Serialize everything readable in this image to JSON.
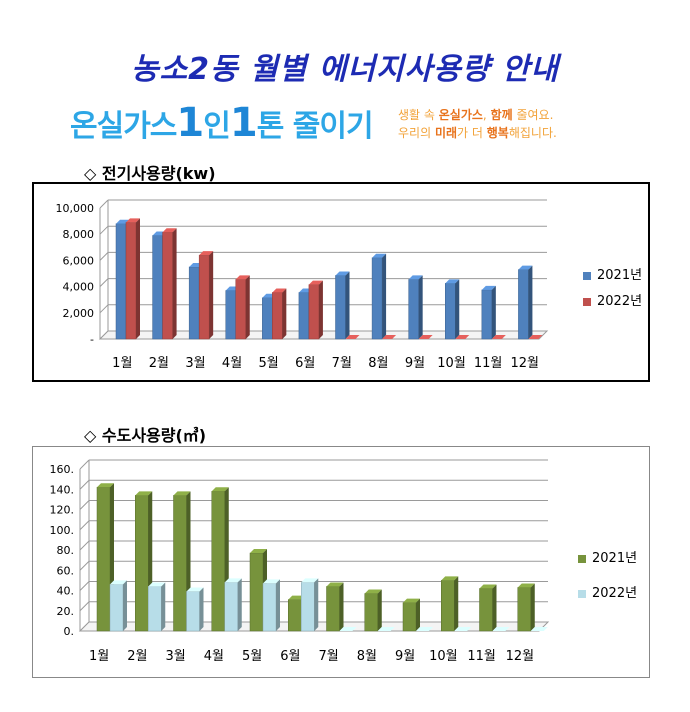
{
  "title": "농소2동 월별 에너지사용량 안내",
  "slogan": {
    "part1": "온실가스",
    "num1": "1",
    "part2": "인",
    "num2": "1",
    "part3": "톤 줄이기",
    "sub_line1_a": "생활 속 ",
    "sub_line1_b": "온실가스",
    "sub_line1_c": ", ",
    "sub_line1_d": "함께",
    "sub_line1_e": " 줄여요.",
    "sub_line2_a": "우리의 ",
    "sub_line2_b": "미래",
    "sub_line2_c": "가 더 ",
    "sub_line2_d": "행복",
    "sub_line2_e": "해집니다."
  },
  "chart_data": [
    {
      "type": "bar",
      "title": "◇ 전기사용량(kw)",
      "categories": [
        "1월",
        "2월",
        "3월",
        "4월",
        "5월",
        "6월",
        "7월",
        "8월",
        "9월",
        "10월",
        "11월",
        "12월"
      ],
      "series": [
        {
          "name": "2021년",
          "values": [
            8800,
            7900,
            5500,
            3700,
            3150,
            3550,
            4850,
            6200,
            4550,
            4250,
            3750,
            5300
          ]
        },
        {
          "name": "2022년",
          "values": [
            8900,
            8150,
            6400,
            4550,
            3550,
            4150,
            0,
            0,
            0,
            0,
            0,
            0
          ]
        }
      ],
      "ylim": [
        0,
        10000
      ],
      "yticks": [
        "-",
        "2,000",
        "4,000",
        "6,000",
        "8,000",
        "10,000"
      ],
      "grid": true,
      "legend": "right",
      "colors": {
        "2021년": "#4f81bd",
        "2022년": "#c0504d"
      }
    },
    {
      "type": "bar",
      "title": "◇ 수도사용량(㎥)",
      "categories": [
        "1월",
        "2월",
        "3월",
        "4월",
        "5월",
        "6월",
        "7월",
        "8월",
        "9월",
        "10월",
        "11월",
        "12월"
      ],
      "series": [
        {
          "name": "2021년",
          "values": [
            142,
            134,
            134,
            138,
            77,
            31,
            44,
            37,
            28,
            50,
            42,
            43
          ]
        },
        {
          "name": "2022년",
          "values": [
            46,
            44,
            39,
            48,
            47,
            48,
            0,
            0,
            0,
            0,
            0,
            0
          ]
        }
      ],
      "ylim": [
        0,
        160
      ],
      "yticks": [
        "0.",
        "20.",
        "40.",
        "60.",
        "80.",
        "100.",
        "120.",
        "140.",
        "160."
      ],
      "grid": true,
      "legend": "right",
      "colors": {
        "2021년": "#77933c",
        "2022년": "#b7dde8"
      }
    }
  ]
}
